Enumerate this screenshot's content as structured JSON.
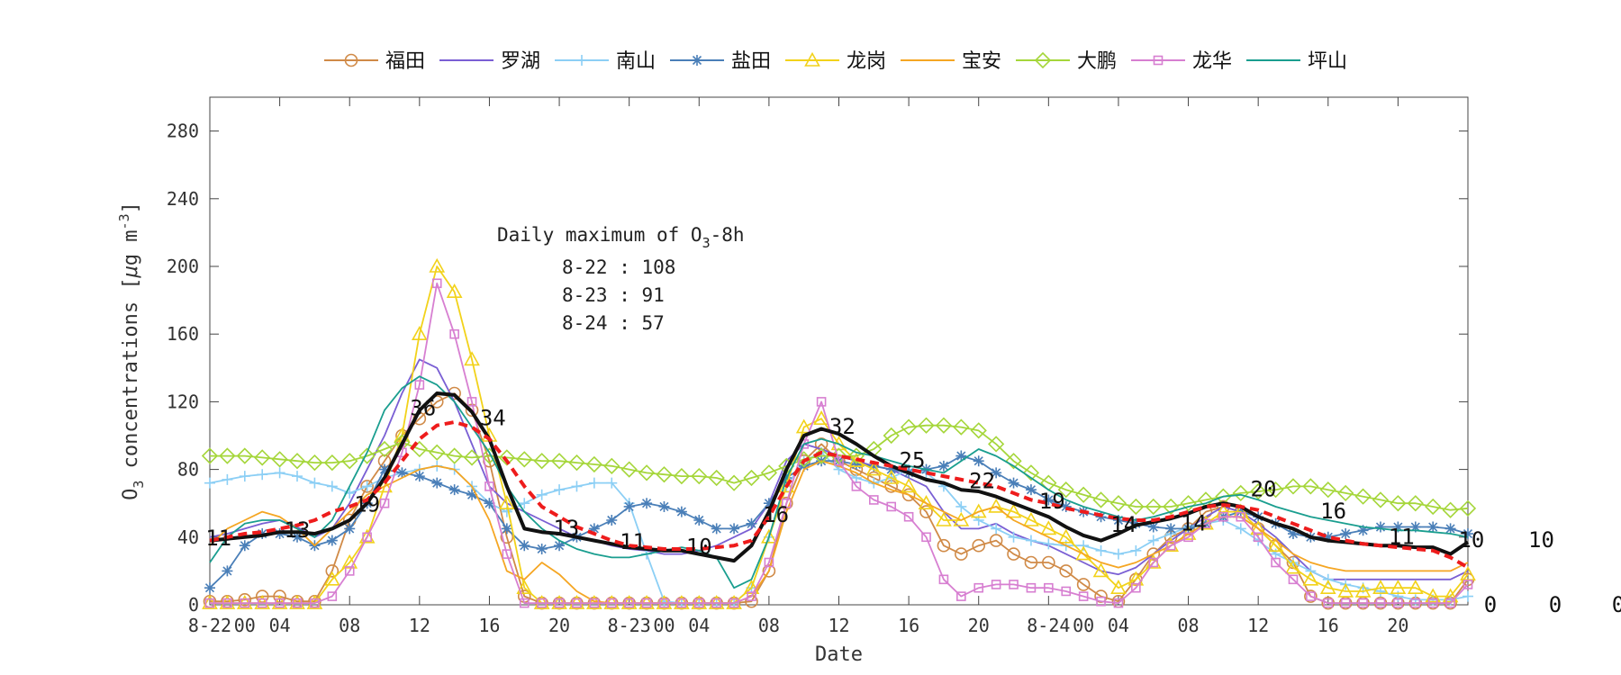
{
  "chart_data": {
    "type": "line",
    "xlabel": "Date",
    "ylabel": {
      "main": "O",
      "sub": "3",
      "rest": " concentrations [",
      "mu": "μ",
      "unit": "g m",
      "sup": "-3",
      "close": "]"
    },
    "ylim": [
      0,
      300
    ],
    "yticks": [
      0,
      40,
      80,
      120,
      160,
      200,
      240,
      280
    ],
    "xlim": [
      0,
      72
    ],
    "xtick_labels": [
      {
        "x": 0,
        "label": "8-22"
      },
      {
        "x": 2,
        "label": "00"
      },
      {
        "x": 4,
        "label": "04"
      },
      {
        "x": 8,
        "label": "08"
      },
      {
        "x": 12,
        "label": "12"
      },
      {
        "x": 16,
        "label": "16"
      },
      {
        "x": 20,
        "label": "20"
      },
      {
        "x": 24,
        "label": "8-23"
      },
      {
        "x": 26,
        "label": "00"
      },
      {
        "x": 28,
        "label": "04"
      },
      {
        "x": 32,
        "label": "08"
      },
      {
        "x": 36,
        "label": "12"
      },
      {
        "x": 40,
        "label": "16"
      },
      {
        "x": 44,
        "label": "20"
      },
      {
        "x": 48,
        "label": "8-24"
      },
      {
        "x": 50,
        "label": "00"
      },
      {
        "x": 52,
        "label": "04"
      },
      {
        "x": 56,
        "label": "08"
      },
      {
        "x": 60,
        "label": "12"
      },
      {
        "x": 64,
        "label": "16"
      },
      {
        "x": 68,
        "label": "20"
      }
    ],
    "grid": false,
    "legend_position": "top",
    "annotation": {
      "title_main": "Daily maximum of O",
      "title_sub": "3",
      "title_rest": "-8h",
      "lines": [
        "8-22 : 108",
        "8-23 : 91",
        "8-24 : 57"
      ]
    },
    "point_labels": [
      {
        "x": 0.5,
        "y": 35,
        "label": "11"
      },
      {
        "x": 5,
        "y": 40,
        "label": "13"
      },
      {
        "x": 9,
        "y": 55,
        "label": "19"
      },
      {
        "x": 12.2,
        "y": 112,
        "label": "36"
      },
      {
        "x": 16.2,
        "y": 106,
        "label": "34"
      },
      {
        "x": 20.4,
        "y": 41,
        "label": "13"
      },
      {
        "x": 24.2,
        "y": 33,
        "label": "11"
      },
      {
        "x": 28,
        "y": 30,
        "label": "10"
      },
      {
        "x": 32.4,
        "y": 49,
        "label": "16"
      },
      {
        "x": 36.2,
        "y": 101,
        "label": "32"
      },
      {
        "x": 40.2,
        "y": 81,
        "label": "25"
      },
      {
        "x": 44.2,
        "y": 69,
        "label": "22"
      },
      {
        "x": 48.2,
        "y": 57,
        "label": "19"
      },
      {
        "x": 52.3,
        "y": 43,
        "label": "14"
      },
      {
        "x": 56.3,
        "y": 44,
        "label": "14"
      },
      {
        "x": 60.3,
        "y": 64,
        "label": "20"
      },
      {
        "x": 64.3,
        "y": 51,
        "label": "16"
      },
      {
        "x": 68.2,
        "y": 36,
        "label": "11"
      },
      {
        "x": 72.2,
        "y": 34,
        "label": "10"
      },
      {
        "x": 76.2,
        "y": 34,
        "label": "10"
      }
    ],
    "extra_labels": [
      "0",
      "0",
      "0"
    ],
    "series": [
      {
        "name": "福田",
        "color": "#d08a47",
        "marker": "circle",
        "values": [
          2,
          2,
          3,
          5,
          5,
          2,
          2,
          20,
          50,
          70,
          85,
          100,
          110,
          120,
          125,
          115,
          85,
          40,
          5,
          1,
          1,
          1,
          1,
          1,
          1,
          1,
          1,
          1,
          1,
          1,
          1,
          2,
          20,
          60,
          85,
          95,
          85,
          80,
          75,
          70,
          65,
          55,
          35,
          30,
          35,
          38,
          30,
          25,
          25,
          20,
          12,
          5,
          2,
          15,
          30,
          40,
          45,
          55,
          58,
          55,
          45,
          35,
          25,
          5,
          1,
          1,
          1,
          1,
          1,
          1,
          1,
          1,
          15
        ]
      },
      {
        "name": "罗湖",
        "color": "#7a5fd4",
        "marker": "none",
        "values": [
          40,
          42,
          45,
          48,
          50,
          46,
          40,
          45,
          60,
          80,
          100,
          125,
          145,
          140,
          120,
          95,
          70,
          60,
          55,
          50,
          45,
          40,
          38,
          35,
          33,
          32,
          30,
          30,
          32,
          35,
          40,
          45,
          60,
          85,
          95,
          92,
          88,
          85,
          82,
          80,
          75,
          70,
          55,
          45,
          45,
          48,
          42,
          38,
          35,
          30,
          25,
          20,
          18,
          22,
          30,
          38,
          45,
          52,
          58,
          55,
          48,
          40,
          30,
          20,
          15,
          15,
          15,
          15,
          15,
          15,
          15,
          15,
          20
        ]
      },
      {
        "name": "南山",
        "color": "#8ccff5",
        "marker": "plus",
        "values": [
          72,
          74,
          76,
          77,
          78,
          76,
          72,
          70,
          66,
          70,
          75,
          78,
          80,
          82,
          80,
          70,
          60,
          55,
          60,
          65,
          68,
          70,
          72,
          72,
          60,
          30,
          2,
          1,
          1,
          1,
          1,
          10,
          40,
          70,
          85,
          90,
          80,
          75,
          72,
          75,
          80,
          78,
          70,
          58,
          50,
          45,
          40,
          38,
          36,
          35,
          35,
          32,
          30,
          32,
          38,
          42,
          46,
          48,
          50,
          45,
          38,
          30,
          25,
          20,
          15,
          12,
          10,
          8,
          5,
          3,
          3,
          3,
          5
        ]
      },
      {
        "name": "盐田",
        "color": "#4a7fb8",
        "marker": "star",
        "values": [
          10,
          20,
          35,
          42,
          42,
          40,
          35,
          38,
          45,
          60,
          80,
          78,
          76,
          72,
          68,
          65,
          60,
          45,
          35,
          33,
          35,
          40,
          45,
          50,
          58,
          60,
          58,
          55,
          50,
          45,
          45,
          48,
          60,
          75,
          82,
          85,
          85,
          83,
          82,
          80,
          78,
          80,
          82,
          88,
          85,
          78,
          72,
          68,
          62,
          58,
          55,
          52,
          50,
          48,
          46,
          45,
          45,
          48,
          52,
          55,
          52,
          48,
          42,
          40,
          40,
          42,
          44,
          46,
          46,
          46,
          46,
          45,
          42
        ]
      },
      {
        "name": "龙岗",
        "color": "#f2d21a",
        "marker": "triangle",
        "values": [
          1,
          1,
          1,
          1,
          1,
          1,
          1,
          15,
          25,
          40,
          70,
          100,
          160,
          200,
          185,
          145,
          100,
          60,
          10,
          1,
          1,
          1,
          1,
          1,
          1,
          1,
          1,
          1,
          1,
          1,
          1,
          10,
          40,
          70,
          105,
          110,
          95,
          85,
          80,
          75,
          70,
          60,
          50,
          50,
          55,
          58,
          55,
          50,
          45,
          40,
          30,
          20,
          10,
          15,
          25,
          35,
          42,
          48,
          55,
          55,
          45,
          35,
          22,
          15,
          10,
          8,
          8,
          10,
          10,
          10,
          5,
          5,
          18
        ]
      },
      {
        "name": "宝安",
        "color": "#f5a623",
        "marker": "none",
        "values": [
          35,
          45,
          50,
          55,
          52,
          45,
          35,
          45,
          55,
          65,
          70,
          75,
          80,
          82,
          80,
          70,
          50,
          20,
          15,
          25,
          18,
          8,
          2,
          1,
          1,
          1,
          1,
          1,
          1,
          1,
          1,
          5,
          20,
          55,
          80,
          85,
          82,
          78,
          72,
          68,
          65,
          60,
          55,
          50,
          55,
          58,
          50,
          45,
          40,
          35,
          30,
          25,
          22,
          25,
          30,
          35,
          42,
          48,
          52,
          52,
          45,
          38,
          30,
          25,
          22,
          20,
          20,
          20,
          20,
          20,
          20,
          20,
          25
        ]
      },
      {
        "name": "大鹏",
        "color": "#a5d63a",
        "marker": "diamond",
        "values": [
          88,
          88,
          88,
          87,
          86,
          85,
          84,
          84,
          85,
          88,
          92,
          96,
          92,
          90,
          88,
          87,
          88,
          87,
          86,
          85,
          85,
          84,
          83,
          82,
          80,
          78,
          77,
          76,
          76,
          75,
          72,
          75,
          78,
          82,
          86,
          88,
          88,
          88,
          92,
          100,
          105,
          106,
          106,
          105,
          103,
          95,
          85,
          78,
          72,
          68,
          65,
          62,
          60,
          58,
          58,
          58,
          60,
          62,
          64,
          66,
          67,
          68,
          70,
          70,
          68,
          66,
          64,
          62,
          60,
          60,
          58,
          56,
          57
        ]
      },
      {
        "name": "龙华",
        "color": "#d77fd1",
        "marker": "square",
        "values": [
          1,
          1,
          1,
          1,
          1,
          1,
          1,
          5,
          20,
          40,
          60,
          90,
          130,
          190,
          160,
          120,
          70,
          30,
          1,
          1,
          1,
          1,
          1,
          1,
          1,
          1,
          1,
          1,
          1,
          1,
          1,
          5,
          25,
          60,
          95,
          120,
          85,
          70,
          62,
          58,
          52,
          40,
          15,
          5,
          10,
          12,
          12,
          10,
          10,
          8,
          5,
          2,
          1,
          10,
          25,
          35,
          40,
          48,
          52,
          52,
          40,
          25,
          15,
          5,
          1,
          1,
          1,
          1,
          1,
          1,
          1,
          1,
          12
        ]
      },
      {
        "name": "坪山",
        "color": "#1a9e8f",
        "marker": "none",
        "values": [
          25,
          40,
          48,
          50,
          50,
          45,
          40,
          50,
          70,
          90,
          115,
          128,
          135,
          130,
          120,
          105,
          90,
          70,
          55,
          45,
          38,
          33,
          30,
          28,
          28,
          30,
          32,
          34,
          32,
          28,
          10,
          15,
          40,
          75,
          95,
          98,
          95,
          90,
          88,
          85,
          82,
          80,
          78,
          85,
          92,
          88,
          82,
          75,
          68,
          62,
          58,
          55,
          52,
          50,
          52,
          55,
          58,
          60,
          64,
          65,
          62,
          58,
          55,
          52,
          50,
          48,
          46,
          45,
          44,
          44,
          43,
          42,
          40
        ]
      },
      {
        "name": "",
        "color": "#111111",
        "marker": "none",
        "style": "bold",
        "values": [
          38,
          39,
          40,
          41,
          43,
          43,
          42,
          45,
          50,
          60,
          75,
          95,
          115,
          125,
          124,
          114,
          98,
          70,
          45,
          43,
          42,
          40,
          38,
          36,
          34,
          33,
          32,
          32,
          30,
          28,
          26,
          35,
          55,
          80,
          100,
          104,
          101,
          95,
          88,
          82,
          78,
          74,
          72,
          68,
          67,
          64,
          60,
          56,
          52,
          46,
          41,
          38,
          42,
          47,
          49,
          51,
          54,
          58,
          60,
          58,
          52,
          48,
          45,
          40,
          38,
          37,
          36,
          35,
          35,
          34,
          34,
          30,
          37
        ]
      },
      {
        "name": "",
        "color": "#ee1c1c",
        "marker": "none",
        "style": "dashed",
        "values": [
          38,
          40,
          42,
          43,
          45,
          47,
          50,
          55,
          58,
          62,
          72,
          85,
          98,
          106,
          108,
          105,
          98,
          85,
          70,
          58,
          52,
          46,
          42,
          38,
          35,
          34,
          33,
          33,
          33,
          34,
          35,
          38,
          52,
          70,
          85,
          90,
          88,
          86,
          84,
          82,
          80,
          78,
          76,
          74,
          72,
          70,
          66,
          62,
          60,
          57,
          55,
          53,
          51,
          50,
          50,
          52,
          55,
          58,
          59,
          58,
          56,
          52,
          48,
          44,
          40,
          38,
          36,
          35,
          34,
          33,
          32,
          28,
          22
        ]
      }
    ]
  }
}
